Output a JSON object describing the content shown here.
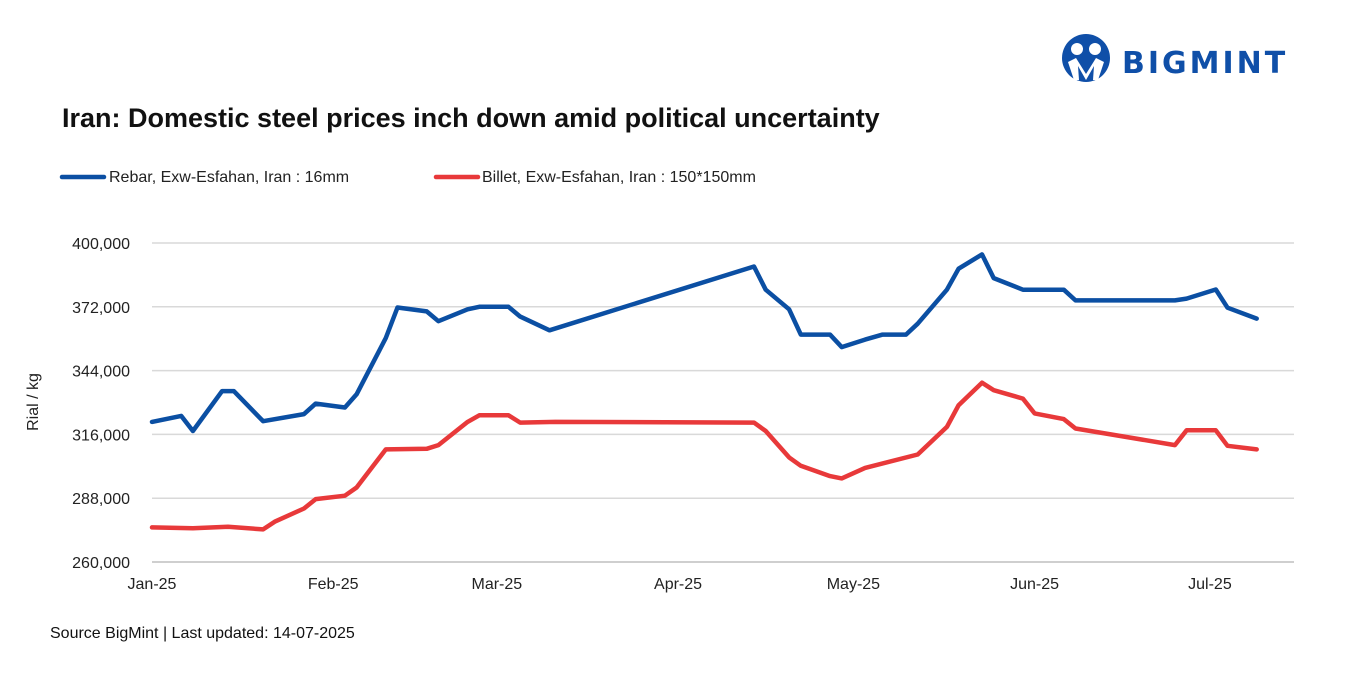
{
  "logo": {
    "text": "BIGMINT",
    "color": "#0f4fa8"
  },
  "chart_data": {
    "type": "line",
    "title": "Iran: Domestic steel prices inch down amid political uncertainty",
    "ylabel": "Rial / kg",
    "xlabel": "",
    "ylim": [
      260000,
      400000
    ],
    "yticks": [
      "260,000",
      "288,000",
      "316,000",
      "344,000",
      "372,000",
      "400,000"
    ],
    "ytick_values": [
      260000,
      288000,
      316000,
      344000,
      372000,
      400000
    ],
    "xlim": [
      "2025-01-01",
      "2025-07-10"
    ],
    "xticks": [
      {
        "label": "Jan-25",
        "date": "2025-01-01"
      },
      {
        "label": "Feb-25",
        "date": "2025-02-01"
      },
      {
        "label": "Mar-25",
        "date": "2025-03-01"
      },
      {
        "label": "Apr-25",
        "date": "2025-04-01"
      },
      {
        "label": "May-25",
        "date": "2025-05-01"
      },
      {
        "label": "Jun-25",
        "date": "2025-06-01"
      },
      {
        "label": "Jul-25",
        "date": "2025-07-01"
      }
    ],
    "grid": "horizontal",
    "legend_position": "top-left",
    "series": [
      {
        "name": "Rebar, Exw-Esfahan, Iran : 16mm",
        "color": "#0b4fa3",
        "x": [
          "2025-01-01",
          "2025-01-06",
          "2025-01-08",
          "2025-01-13",
          "2025-01-15",
          "2025-01-20",
          "2025-01-27",
          "2025-01-29",
          "2025-02-03",
          "2025-02-05",
          "2025-02-10",
          "2025-02-12",
          "2025-02-17",
          "2025-02-19",
          "2025-02-24",
          "2025-02-26",
          "2025-03-03",
          "2025-03-05",
          "2025-03-10",
          "2025-04-14",
          "2025-04-16",
          "2025-04-20",
          "2025-04-22",
          "2025-04-27",
          "2025-04-29",
          "2025-05-03",
          "2025-05-06",
          "2025-05-10",
          "2025-05-12",
          "2025-05-17",
          "2025-05-19",
          "2025-05-23",
          "2025-05-25",
          "2025-05-30",
          "2025-06-06",
          "2025-06-08",
          "2025-06-25",
          "2025-06-27",
          "2025-07-02",
          "2025-07-04",
          "2025-07-09"
        ],
        "values": [
          321500,
          324100,
          317500,
          335000,
          335000,
          321800,
          324900,
          329500,
          327800,
          333600,
          358300,
          371700,
          370000,
          365700,
          370900,
          372000,
          372000,
          367700,
          361700,
          389700,
          379500,
          370900,
          359800,
          359800,
          354300,
          357600,
          359800,
          359800,
          364600,
          379500,
          388700,
          395000,
          384600,
          379500,
          379500,
          374800,
          374800,
          375600,
          379600,
          371600,
          366800
        ]
      },
      {
        "name": "Billet, Exw-Esfahan, Iran : 150*150mm",
        "color": "#e8393a",
        "x": [
          "2025-01-01",
          "2025-01-08",
          "2025-01-14",
          "2025-01-20",
          "2025-01-22",
          "2025-01-27",
          "2025-01-29",
          "2025-02-03",
          "2025-02-05",
          "2025-02-10",
          "2025-02-17",
          "2025-02-19",
          "2025-02-24",
          "2025-02-26",
          "2025-03-03",
          "2025-03-05",
          "2025-03-11",
          "2025-04-14",
          "2025-04-16",
          "2025-04-20",
          "2025-04-22",
          "2025-04-27",
          "2025-04-29",
          "2025-05-03",
          "2025-05-12",
          "2025-05-17",
          "2025-05-19",
          "2025-05-23",
          "2025-05-25",
          "2025-05-30",
          "2025-06-01",
          "2025-06-06",
          "2025-06-08",
          "2025-06-25",
          "2025-06-27",
          "2025-07-02",
          "2025-07-04",
          "2025-07-09"
        ],
        "values": [
          275200,
          274800,
          275500,
          274300,
          277700,
          283500,
          287600,
          289100,
          292700,
          309400,
          309700,
          311300,
          321500,
          324400,
          324400,
          321200,
          321500,
          321200,
          317500,
          305900,
          302200,
          297700,
          296700,
          301300,
          307200,
          319300,
          328800,
          338700,
          335400,
          331700,
          325200,
          322700,
          318600,
          311300,
          317800,
          317800,
          311000,
          309400
        ]
      }
    ]
  },
  "footer": {
    "source": "Source BigMint | Last updated: 14-07-2025"
  }
}
